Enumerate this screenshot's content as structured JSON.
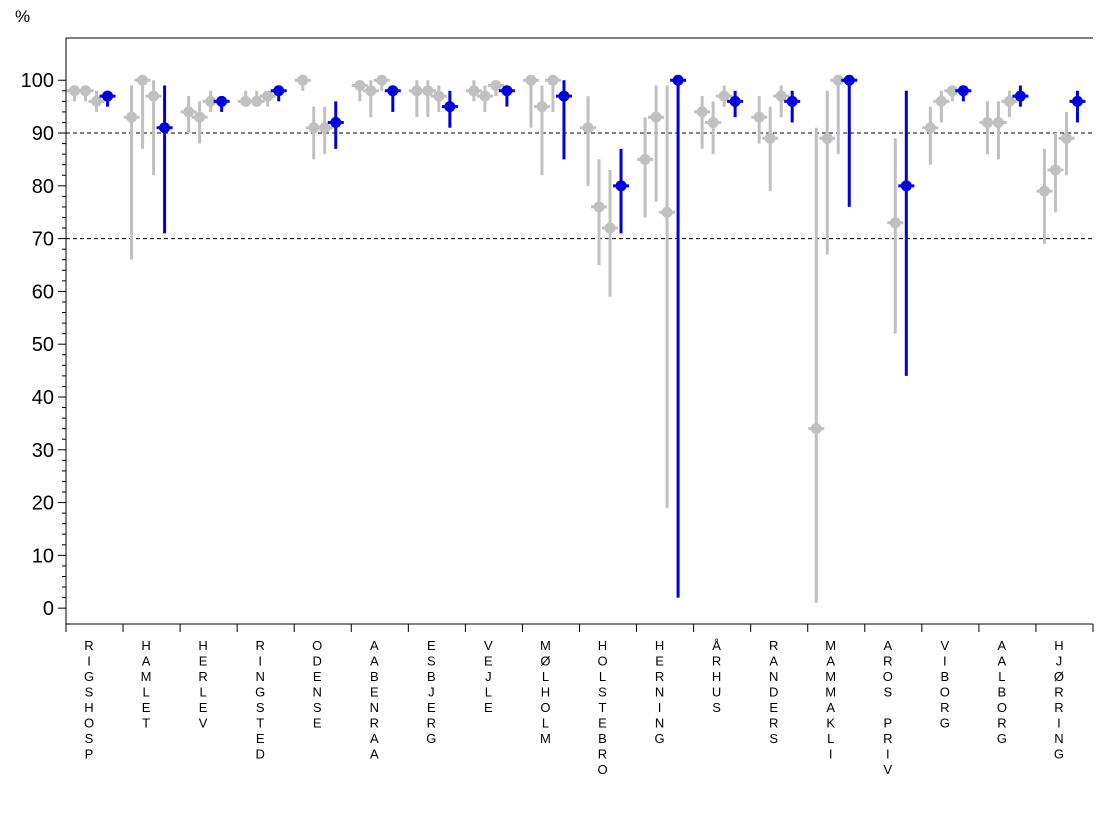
{
  "chart_data": {
    "type": "scatter",
    "ylabel": "%",
    "ylim": [
      -3,
      108
    ],
    "yticks": [
      0,
      10,
      20,
      30,
      40,
      50,
      60,
      70,
      80,
      90,
      100
    ],
    "grid": false,
    "reference_lines": [
      90,
      70
    ],
    "colors": {
      "history": "#c0c0c0",
      "current": "#0000d8",
      "axis": "#000000",
      "reference": "#000000"
    },
    "categories": [
      "RIGSHOSP",
      "HAMLET",
      "HERLEV",
      "RINGSTED",
      "ODENSE",
      "AABENRAA",
      "ESBJERG",
      "VEJLE",
      "MØLHOLM",
      "HOLSTEBRO",
      "HERNING",
      "ÅRHUS",
      "RANDERS",
      "MAMMAKLI",
      "AROS PRIV",
      "VIBORG",
      "AALBORG",
      "HJØRRING"
    ],
    "series": [
      {
        "name": "",
        "color": "#c0c0c0",
        "points": [
          {
            "category": "RIGSHOSP",
            "slot": 0,
            "y": 98,
            "low": 96,
            "high": 99
          },
          {
            "category": "RIGSHOSP",
            "slot": 1,
            "y": 98,
            "low": 96,
            "high": 99
          },
          {
            "category": "RIGSHOSP",
            "slot": 2,
            "y": 96,
            "low": 94,
            "high": 98
          },
          {
            "category": "HAMLET",
            "slot": 0,
            "y": 93,
            "low": 66,
            "high": 99
          },
          {
            "category": "HAMLET",
            "slot": 1,
            "y": 100,
            "low": 87,
            "high": 100
          },
          {
            "category": "HAMLET",
            "slot": 2,
            "y": 97,
            "low": 82,
            "high": 100
          },
          {
            "category": "HERLEV",
            "slot": 1,
            "y": 94,
            "low": 90,
            "high": 97
          },
          {
            "category": "HERLEV",
            "slot": 2,
            "y": 93,
            "low": 88,
            "high": 96
          },
          {
            "category": "HERLEV",
            "slot": 3,
            "y": 96,
            "low": 94,
            "high": 98
          },
          {
            "category": "RINGSTED",
            "slot": 0,
            "y": 96,
            "low": 95,
            "high": 98
          },
          {
            "category": "RINGSTED",
            "slot": 1,
            "y": 96,
            "low": 95,
            "high": 98
          },
          {
            "category": "RINGSTED",
            "slot": 2,
            "y": 97,
            "low": 95,
            "high": 98
          },
          {
            "category": "ODENSE",
            "slot": 0,
            "y": 100,
            "low": 98,
            "high": 100
          },
          {
            "category": "ODENSE",
            "slot": 1,
            "y": 91,
            "low": 85,
            "high": 95
          },
          {
            "category": "ODENSE",
            "slot": 2,
            "y": 91,
            "low": 86,
            "high": 95
          },
          {
            "category": "AABENRAA",
            "slot": 0,
            "y": 99,
            "low": 96,
            "high": 100
          },
          {
            "category": "AABENRAA",
            "slot": 1,
            "y": 98,
            "low": 93,
            "high": 100
          },
          {
            "category": "AABENRAA",
            "slot": 2,
            "y": 100,
            "low": 98,
            "high": 100
          },
          {
            "category": "ESBJERG",
            "slot": 0,
            "y": 98,
            "low": 93,
            "high": 100
          },
          {
            "category": "ESBJERG",
            "slot": 1,
            "y": 98,
            "low": 93,
            "high": 100
          },
          {
            "category": "ESBJERG",
            "slot": 2,
            "y": 97,
            "low": 94,
            "high": 99
          },
          {
            "category": "VEJLE",
            "slot": 0,
            "y": 98,
            "low": 96,
            "high": 100
          },
          {
            "category": "VEJLE",
            "slot": 1,
            "y": 97,
            "low": 94,
            "high": 99
          },
          {
            "category": "VEJLE",
            "slot": 2,
            "y": 99,
            "low": 97,
            "high": 99
          },
          {
            "category": "MØLHOLM",
            "slot": 0,
            "y": 100,
            "low": 91,
            "high": 100
          },
          {
            "category": "MØLHOLM",
            "slot": 1,
            "y": 95,
            "low": 82,
            "high": 99
          },
          {
            "category": "MØLHOLM",
            "slot": 2,
            "y": 100,
            "low": 94,
            "high": 100
          },
          {
            "category": "HOLSTEBRO",
            "slot": 0,
            "y": 91,
            "low": 80,
            "high": 97
          },
          {
            "category": "HOLSTEBRO",
            "slot": 1,
            "y": 76,
            "low": 65,
            "high": 85
          },
          {
            "category": "HOLSTEBRO",
            "slot": 2,
            "y": 72,
            "low": 59,
            "high": 83
          },
          {
            "category": "HERNING",
            "slot": 0,
            "y": 85,
            "low": 74,
            "high": 93
          },
          {
            "category": "HERNING",
            "slot": 1,
            "y": 93,
            "low": 77,
            "high": 99
          },
          {
            "category": "HERNING",
            "slot": 2,
            "y": 75,
            "low": 19,
            "high": 99
          },
          {
            "category": "ÅRHUS",
            "slot": 0,
            "y": 94,
            "low": 87,
            "high": 97
          },
          {
            "category": "ÅRHUS",
            "slot": 1,
            "y": 92,
            "low": 86,
            "high": 96
          },
          {
            "category": "ÅRHUS",
            "slot": 2,
            "y": 97,
            "low": 95,
            "high": 99
          },
          {
            "category": "RANDERS",
            "slot": 0,
            "y": 93,
            "low": 88,
            "high": 97
          },
          {
            "category": "RANDERS",
            "slot": 1,
            "y": 89,
            "low": 79,
            "high": 95
          },
          {
            "category": "RANDERS",
            "slot": 2,
            "y": 97,
            "low": 93,
            "high": 99
          },
          {
            "category": "MAMMAKLI",
            "slot": 0,
            "y": 34,
            "low": 1,
            "high": 91
          },
          {
            "category": "MAMMAKLI",
            "slot": 1,
            "y": 89,
            "low": 67,
            "high": 98
          },
          {
            "category": "MAMMAKLI",
            "slot": 2,
            "y": 100,
            "low": 86,
            "high": 100
          },
          {
            "category": "AROS PRIV",
            "slot": 2,
            "y": 73,
            "low": 52,
            "high": 89
          },
          {
            "category": "VIBORG",
            "slot": 0,
            "y": 91,
            "low": 84,
            "high": 95
          },
          {
            "category": "VIBORG",
            "slot": 1,
            "y": 96,
            "low": 92,
            "high": 98
          },
          {
            "category": "VIBORG",
            "slot": 2,
            "y": 98,
            "low": 96,
            "high": 99
          },
          {
            "category": "AALBORG",
            "slot": 0,
            "y": 92,
            "low": 86,
            "high": 96
          },
          {
            "category": "AALBORG",
            "slot": 1,
            "y": 92,
            "low": 85,
            "high": 96
          },
          {
            "category": "AALBORG",
            "slot": 2,
            "y": 96,
            "low": 93,
            "high": 98
          },
          {
            "category": "HJØRRING",
            "slot": 0,
            "y": 79,
            "low": 69,
            "high": 87
          },
          {
            "category": "HJØRRING",
            "slot": 1,
            "y": 83,
            "low": 75,
            "high": 90
          },
          {
            "category": "HJØRRING",
            "slot": 2,
            "y": 89,
            "low": 82,
            "high": 94
          }
        ]
      },
      {
        "name": "",
        "color": "#0000d8",
        "points": [
          {
            "category": "RIGSHOSP",
            "slot": 3,
            "y": 97,
            "low": 95,
            "high": 98
          },
          {
            "category": "HAMLET",
            "slot": 3,
            "y": 91,
            "low": 71,
            "high": 99
          },
          {
            "category": "HERLEV",
            "slot": 4,
            "y": 96,
            "low": 94,
            "high": 97
          },
          {
            "category": "RINGSTED",
            "slot": 3,
            "y": 98,
            "low": 96,
            "high": 98
          },
          {
            "category": "ODENSE",
            "slot": 3,
            "y": 92,
            "low": 87,
            "high": 96
          },
          {
            "category": "AABENRAA",
            "slot": 3,
            "y": 98,
            "low": 94,
            "high": 99
          },
          {
            "category": "ESBJERG",
            "slot": 3,
            "y": 95,
            "low": 91,
            "high": 98
          },
          {
            "category": "VEJLE",
            "slot": 3,
            "y": 98,
            "low": 95,
            "high": 99
          },
          {
            "category": "MØLHOLM",
            "slot": 3,
            "y": 97,
            "low": 85,
            "high": 100
          },
          {
            "category": "HOLSTEBRO",
            "slot": 3,
            "y": 80,
            "low": 71,
            "high": 87
          },
          {
            "category": "HERNING",
            "slot": 3,
            "y": 100,
            "low": 2,
            "high": 100
          },
          {
            "category": "ÅRHUS",
            "slot": 3,
            "y": 96,
            "low": 93,
            "high": 98
          },
          {
            "category": "RANDERS",
            "slot": 3,
            "y": 96,
            "low": 92,
            "high": 98
          },
          {
            "category": "MAMMAKLI",
            "slot": 3,
            "y": 100,
            "low": 76,
            "high": 100
          },
          {
            "category": "AROS PRIV",
            "slot": 3,
            "y": 80,
            "low": 44,
            "high": 98
          },
          {
            "category": "VIBORG",
            "slot": 3,
            "y": 98,
            "low": 96,
            "high": 99
          },
          {
            "category": "AALBORG",
            "slot": 3,
            "y": 97,
            "low": 95,
            "high": 99
          },
          {
            "category": "HJØRRING",
            "slot": 3,
            "y": 96,
            "low": 92,
            "high": 98
          }
        ]
      }
    ]
  }
}
